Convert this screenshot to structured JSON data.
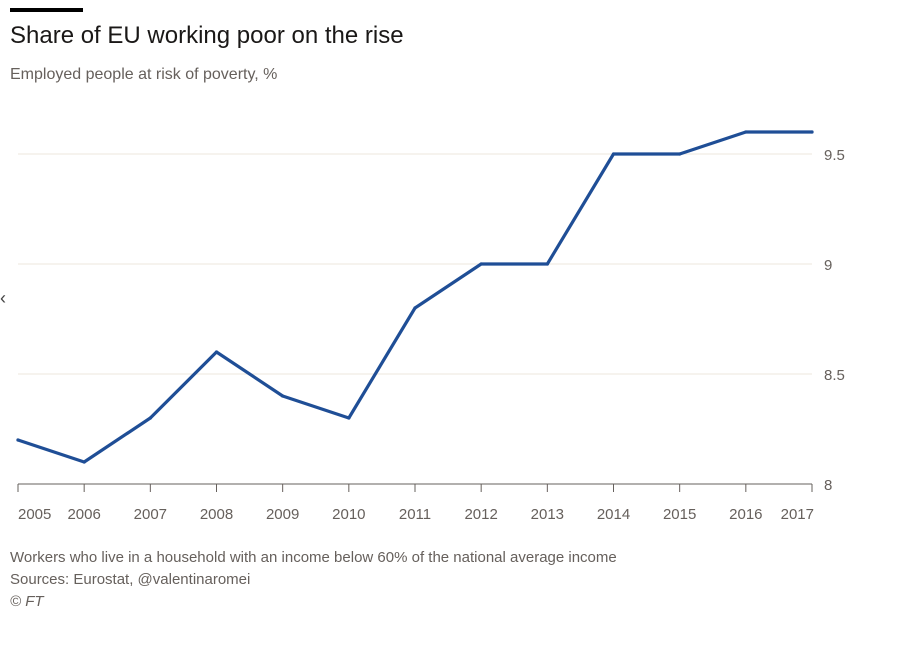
{
  "header": {
    "title": "Share of EU working poor on the rise",
    "subtitle": "Employed people at risk of poverty, %"
  },
  "footer": {
    "note": "Workers who live in a household with an income below 60% of the national average income",
    "source": "Sources: Eurostat, @valentinaromei",
    "copyright": "© FT"
  },
  "colors": {
    "line": "#1f4e96",
    "grid": "#ece7de",
    "axis": "#66605c"
  },
  "chart_data": {
    "type": "line",
    "title": "Share of EU working poor on the rise",
    "subtitle": "Employed people at risk of poverty, %",
    "x": [
      "2005",
      "2006",
      "2007",
      "2008",
      "2009",
      "2010",
      "2011",
      "2012",
      "2013",
      "2014",
      "2015",
      "2016",
      "2017"
    ],
    "series": [
      {
        "values": [
          8.2,
          8.1,
          8.3,
          8.6,
          8.4,
          8.3,
          8.8,
          9.0,
          9.0,
          9.5,
          9.5,
          9.6,
          9.6
        ]
      }
    ],
    "ylim": [
      8,
      9.6
    ],
    "yticks": [
      8,
      8.5,
      9,
      9.5
    ],
    "ytick_labels": [
      "8",
      "8.5",
      "9",
      "9.5"
    ],
    "y_axis_side": "right",
    "grid": true
  }
}
